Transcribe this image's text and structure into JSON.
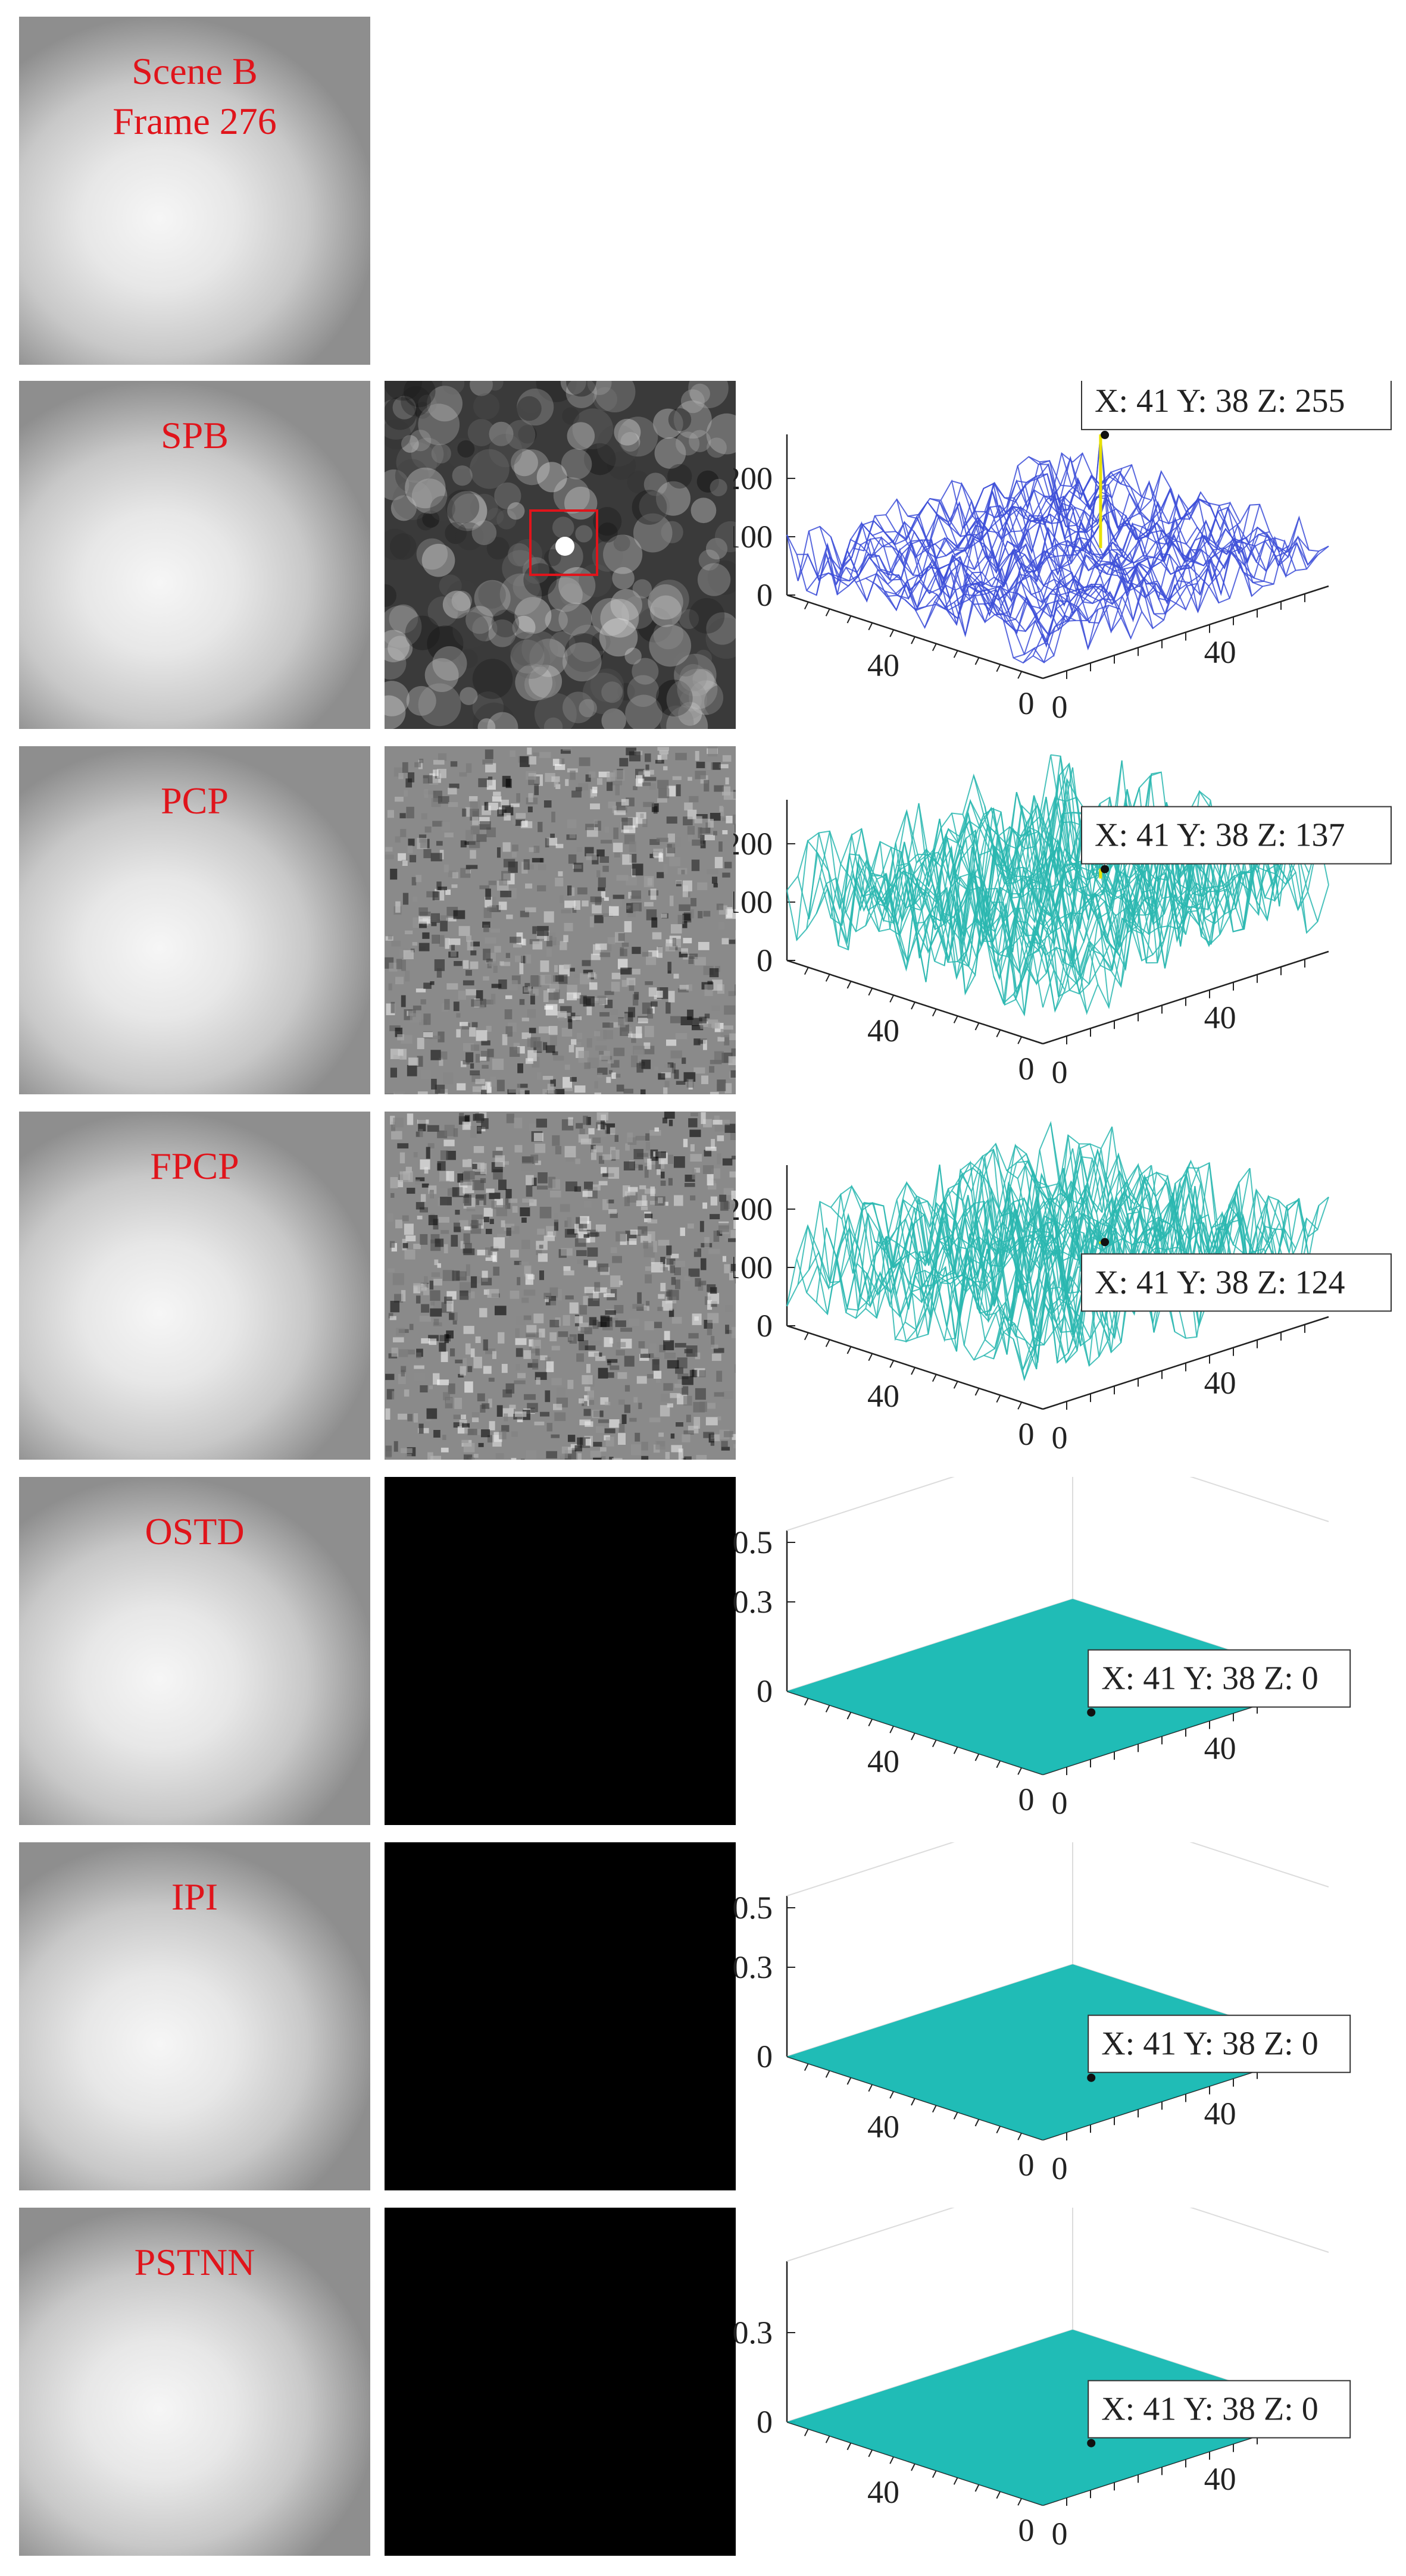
{
  "rows": [
    {
      "label_lines": [
        "Scene B",
        "Frame 276"
      ],
      "has_result": false
    },
    {
      "label_lines": [
        "SPB"
      ],
      "result": "noise",
      "highlight_box": true,
      "plot": {
        "type": "mesh",
        "colormap": "blue-yellow",
        "zticks": [
          "200",
          "100",
          "0"
        ],
        "xticks": [
          "40"
        ],
        "yticks": [
          "40"
        ],
        "origin": [
          "0",
          "0"
        ],
        "datatip": {
          "x": 41,
          "y": 38,
          "z": 255,
          "text": "X: 41 Y: 38 Z: 255"
        }
      }
    },
    {
      "label_lines": [
        "PCP"
      ],
      "result": "fine-noise",
      "plot": {
        "type": "mesh",
        "colormap": "cyan-yellow",
        "zticks": [
          "200",
          "100",
          "0"
        ],
        "xticks": [
          "40"
        ],
        "yticks": [
          "40"
        ],
        "origin": [
          "0",
          "0"
        ],
        "datatip": {
          "x": 41,
          "y": 38,
          "z": 137,
          "text": "X: 41 Y: 38 Z: 137"
        }
      }
    },
    {
      "label_lines": [
        "FPCP"
      ],
      "result": "fine-noise",
      "plot": {
        "type": "mesh",
        "colormap": "cyan-yellow",
        "zticks": [
          "200",
          "100",
          "0"
        ],
        "xticks": [
          "40"
        ],
        "yticks": [
          "40"
        ],
        "origin": [
          "0",
          "0"
        ],
        "datatip": {
          "x": 41,
          "y": 38,
          "z": 124,
          "text": "X: 41 Y: 38 Z: 124"
        }
      }
    },
    {
      "label_lines": [
        "OSTD"
      ],
      "result": "black",
      "plot": {
        "type": "flat",
        "colormap": "teal",
        "zticks": [
          "0.5",
          "0.3",
          "0"
        ],
        "xticks": [
          "40"
        ],
        "yticks": [
          "40"
        ],
        "origin": [
          "0",
          "0"
        ],
        "datatip": {
          "x": 41,
          "y": 38,
          "z": 0,
          "text": "X: 41 Y: 38 Z: 0"
        }
      }
    },
    {
      "label_lines": [
        "IPI"
      ],
      "result": "black",
      "plot": {
        "type": "flat",
        "colormap": "teal",
        "zticks": [
          "0.5",
          "0.3",
          "0"
        ],
        "xticks": [
          "40"
        ],
        "yticks": [
          "40"
        ],
        "origin": [
          "0",
          "0"
        ],
        "datatip": {
          "x": 41,
          "y": 38,
          "z": 0,
          "text": "X: 41 Y: 38 Z: 0"
        }
      }
    },
    {
      "label_lines": [
        "PSTNN"
      ],
      "result": "black",
      "plot": {
        "type": "flat",
        "colormap": "teal",
        "zticks": [
          "0.3",
          "0"
        ],
        "xticks": [
          "40"
        ],
        "yticks": [
          "40"
        ],
        "origin": [
          "0",
          "0"
        ],
        "datatip": {
          "x": 41,
          "y": 38,
          "z": 0,
          "text": "X: 41 Y: 38 Z: 0"
        }
      }
    }
  ],
  "colors": {
    "label": "#e0141b",
    "mesh_blue": "#3d4fd8",
    "mesh_cyan": "#2ab7b0",
    "peak": "#e8e000",
    "flat_teal": "#14b8b2"
  }
}
